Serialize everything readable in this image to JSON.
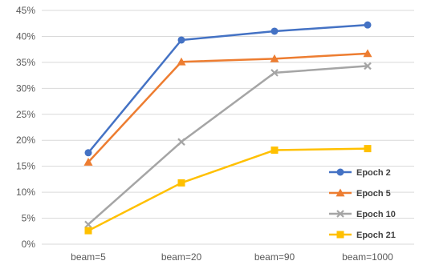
{
  "chart_data": {
    "type": "line",
    "title": "",
    "xlabel": "",
    "ylabel": "",
    "categories": [
      "beam=5",
      "beam=20",
      "beam=90",
      "beam=1000"
    ],
    "ylim": [
      0,
      45
    ],
    "y_ticks": [
      "0%",
      "5%",
      "10%",
      "15%",
      "20%",
      "25%",
      "30%",
      "35%",
      "40%",
      "45%"
    ],
    "y_unit": "%",
    "grid": "horizontal",
    "legend_position": "bottom-right",
    "series": [
      {
        "name": "Epoch 2",
        "color": "#4472C4",
        "marker": "circle",
        "values": [
          17.6,
          39.3,
          41.0,
          42.2
        ]
      },
      {
        "name": "Epoch 5",
        "color": "#ED7D31",
        "marker": "triangle",
        "values": [
          15.8,
          35.1,
          35.7,
          36.7
        ]
      },
      {
        "name": "Epoch 10",
        "color": "#A5A5A5",
        "marker": "x",
        "values": [
          3.8,
          19.7,
          33.0,
          34.3
        ]
      },
      {
        "name": "Epoch 21",
        "color": "#FFC000",
        "marker": "square",
        "values": [
          2.6,
          11.8,
          18.1,
          18.4
        ]
      }
    ]
  }
}
